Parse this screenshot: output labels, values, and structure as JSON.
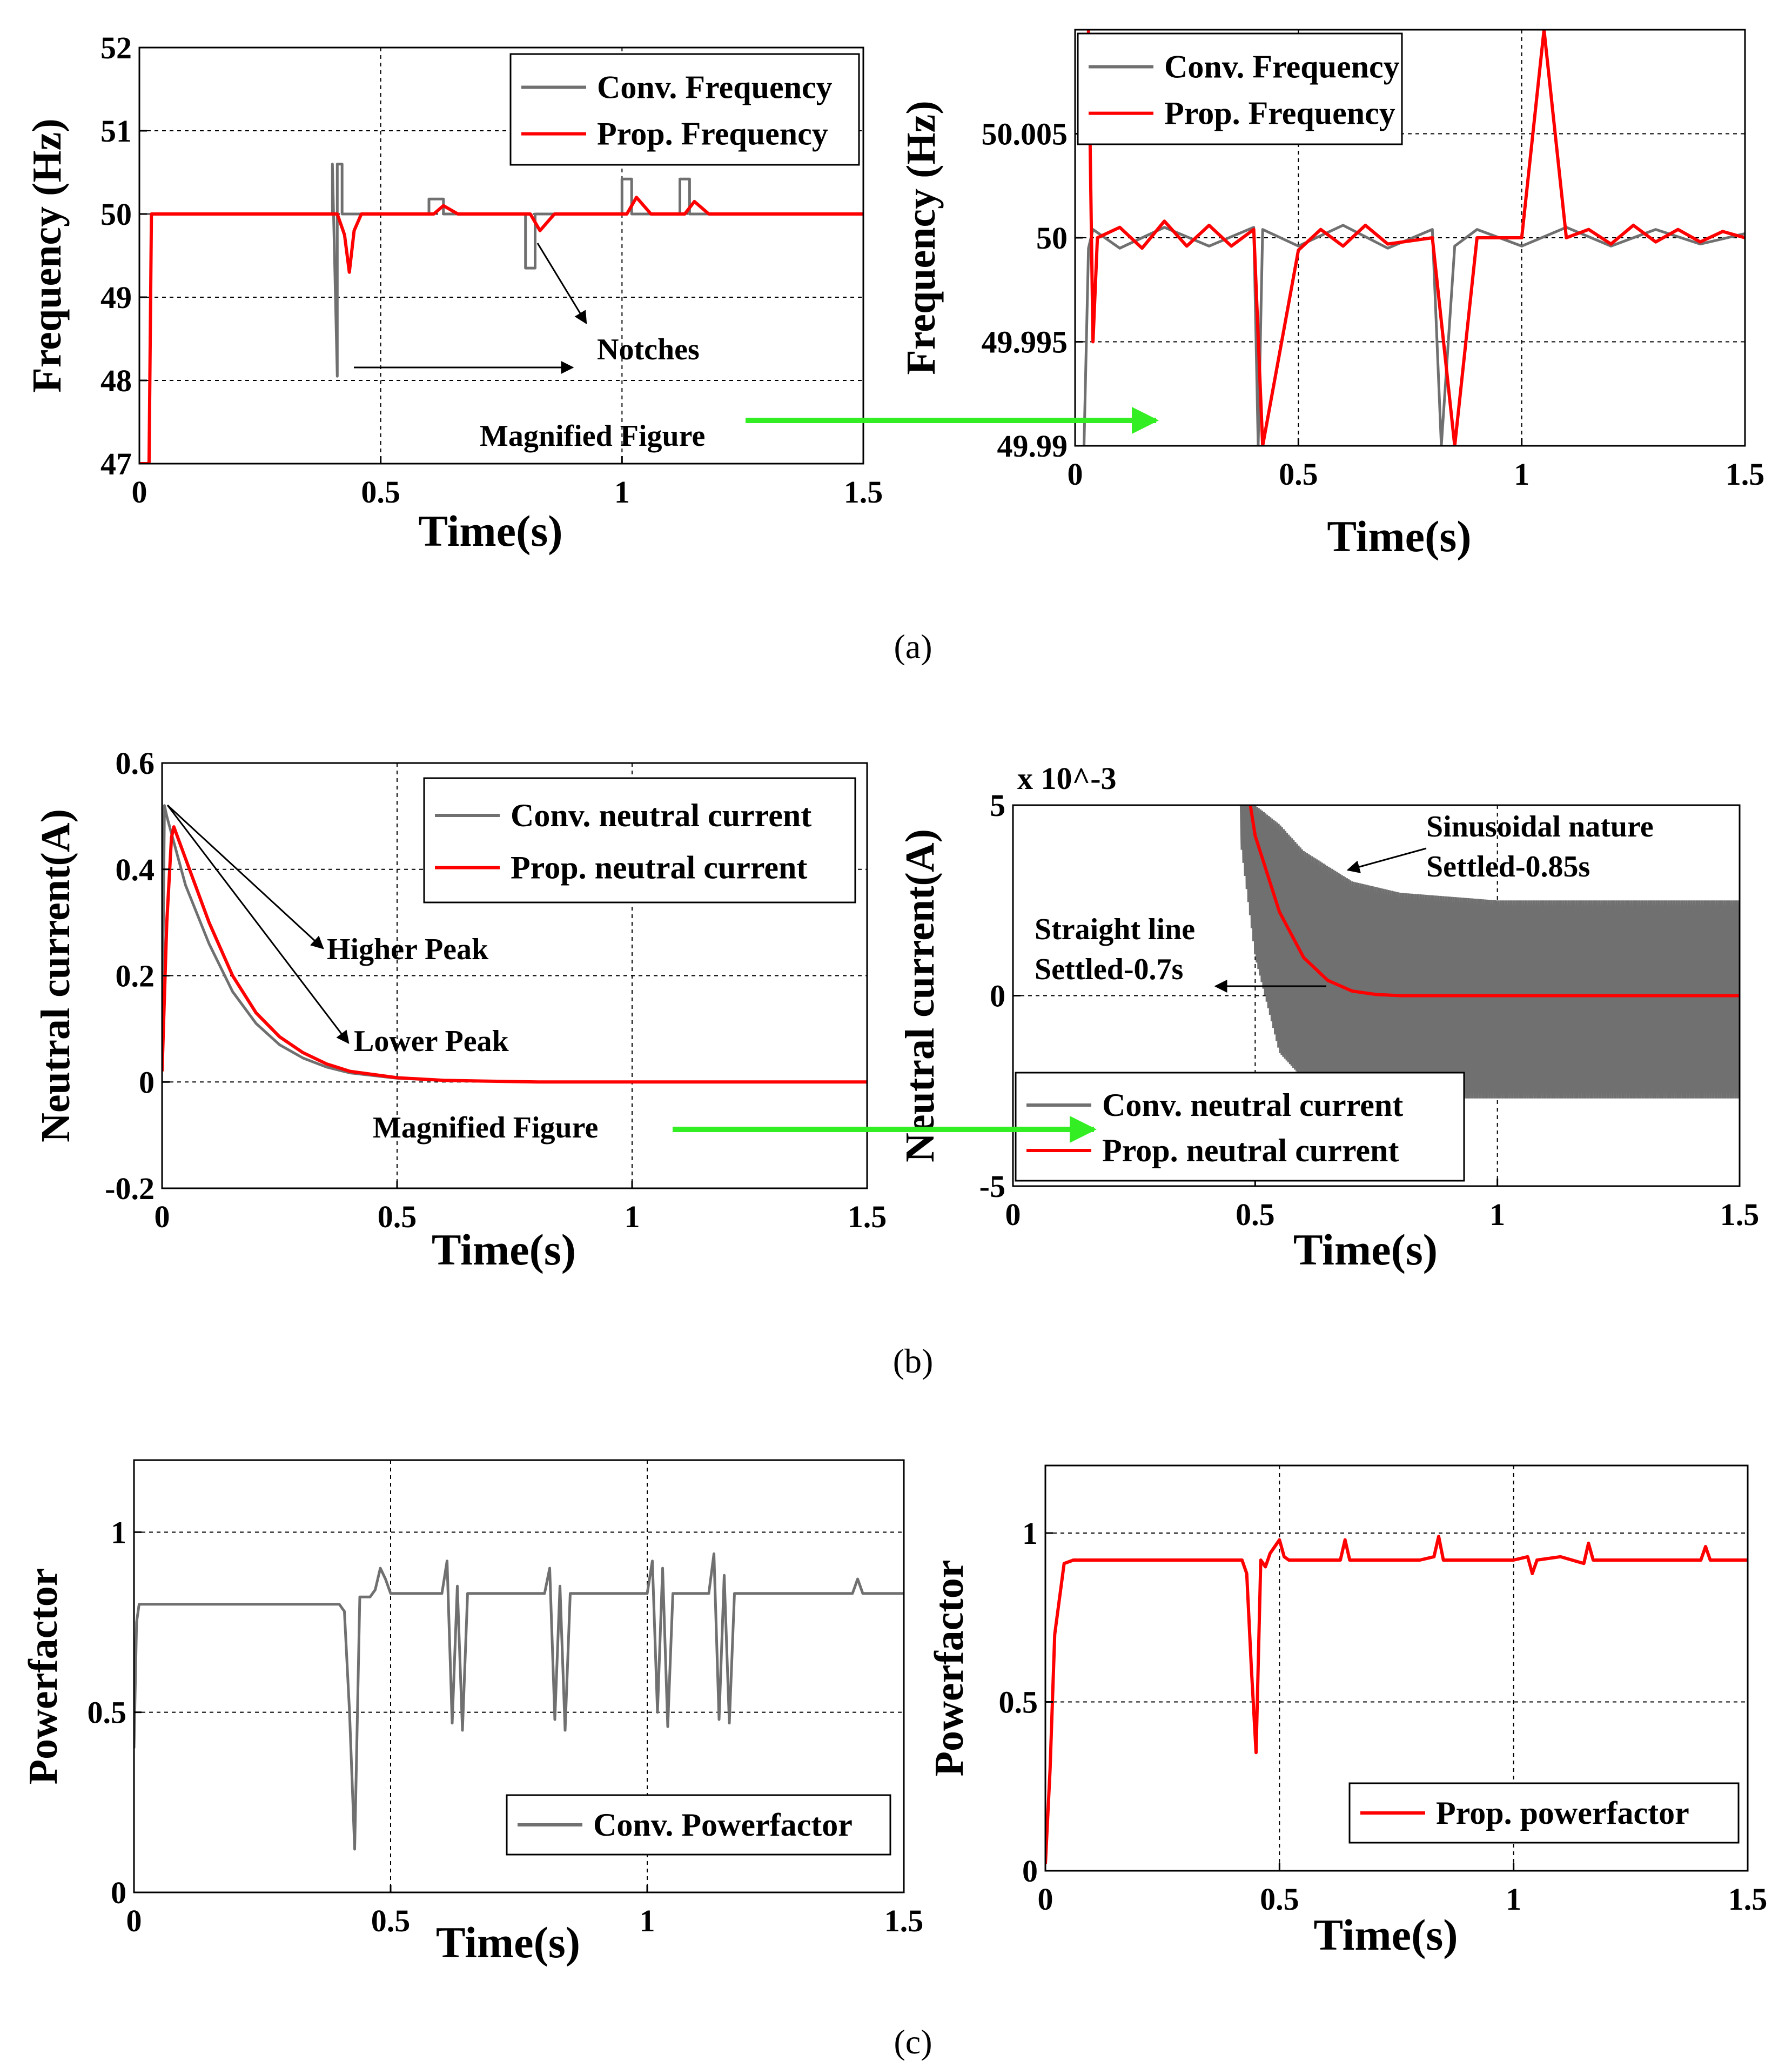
{
  "colors": {
    "conv": "#707070",
    "prop": "#ff0000",
    "magnify_arrow": "#33ee22",
    "grid": "#000000"
  },
  "captions": [
    "(a)",
    "(b)",
    "(c)"
  ],
  "chart_data": [
    {
      "id": "a-left",
      "type": "line",
      "xlabel": "Time(s)",
      "ylabel": "Frequency (Hz)",
      "xlim": [
        0,
        1.5
      ],
      "ylim": [
        47,
        52
      ],
      "xticks": [
        0,
        0.5,
        1,
        1.5
      ],
      "xtick_labels": [
        "0",
        "0.5",
        "1",
        "1.5"
      ],
      "yticks": [
        47,
        48,
        49,
        50,
        51,
        52
      ],
      "ytick_labels": [
        "47",
        "48",
        "49",
        "50",
        "51",
        "52"
      ],
      "grid": true,
      "legend_position": "top-right",
      "series": [
        {
          "name": "Conv. Frequency",
          "color": "#707070",
          "x": [
            0,
            0.02,
            0.025,
            0.04,
            0.4,
            0.4,
            0.41,
            0.41,
            0.42,
            0.42,
            0.43,
            0.6,
            0.6,
            0.63,
            0.63,
            0.8,
            0.8,
            0.82,
            0.82,
            1.0,
            1.0,
            1.02,
            1.02,
            1.12,
            1.12,
            1.14,
            1.14,
            1.5
          ],
          "y": [
            47,
            47,
            50,
            50,
            50,
            50.6,
            48.05,
            50.6,
            50.6,
            50,
            50,
            50,
            50.18,
            50.18,
            50,
            50,
            49.35,
            49.35,
            50,
            50,
            50.42,
            50.42,
            50,
            50,
            50.42,
            50.42,
            50,
            50
          ]
        },
        {
          "name": "Prop. Frequency",
          "color": "#ff0000",
          "x": [
            0,
            0.02,
            0.025,
            0.04,
            0.41,
            0.425,
            0.435,
            0.445,
            0.46,
            0.61,
            0.63,
            0.66,
            0.81,
            0.83,
            0.86,
            1.01,
            1.03,
            1.06,
            1.13,
            1.15,
            1.18,
            1.5
          ],
          "y": [
            47,
            47,
            50,
            50,
            50,
            49.75,
            49.3,
            49.8,
            50,
            50,
            50.1,
            50,
            50,
            49.8,
            50,
            50,
            50.2,
            50,
            50,
            50.15,
            50,
            50
          ]
        }
      ],
      "annotations": [
        "Notches",
        "Magnified Figure"
      ]
    },
    {
      "id": "a-right",
      "type": "line",
      "xlabel": "Time(s)",
      "ylabel": "Frequency (Hz)",
      "xlim": [
        0,
        1.5
      ],
      "ylim": [
        49.99,
        50.01
      ],
      "xticks": [
        0,
        0.5,
        1,
        1.5
      ],
      "xtick_labels": [
        "0",
        "0.5",
        "1",
        "1.5"
      ],
      "yticks": [
        49.99,
        49.995,
        50,
        50.005
      ],
      "ytick_labels": [
        "49.99",
        "49.995",
        "50",
        "50.005"
      ],
      "grid": true,
      "legend_position": "top-left",
      "series": [
        {
          "name": "Conv. Frequency",
          "color": "#707070",
          "x": [
            0.02,
            0.03,
            0.04,
            0.1,
            0.2,
            0.3,
            0.4,
            0.41,
            0.42,
            0.5,
            0.6,
            0.7,
            0.8,
            0.82,
            0.85,
            0.9,
            1.0,
            1.1,
            1.2,
            1.3,
            1.4,
            1.5
          ],
          "y": [
            49.99,
            49.9995,
            50.0004,
            49.9995,
            50.0005,
            49.9996,
            50.0005,
            49.99,
            50.0004,
            49.9996,
            50.0006,
            49.9995,
            50.0004,
            49.99,
            49.9996,
            50.0004,
            49.9996,
            50.0005,
            49.9996,
            50.0004,
            49.9997,
            50.0002
          ]
        },
        {
          "name": "Prop. Frequency",
          "color": "#ff0000",
          "x": [
            0.03,
            0.04,
            0.05,
            0.1,
            0.15,
            0.2,
            0.25,
            0.3,
            0.35,
            0.4,
            0.42,
            0.5,
            0.55,
            0.6,
            0.65,
            0.7,
            0.8,
            0.85,
            0.9,
            1.0,
            1.05,
            1.1,
            1.15,
            1.2,
            1.25,
            1.3,
            1.35,
            1.4,
            1.45,
            1.5
          ],
          "y": [
            50.01,
            49.995,
            50.0,
            50.0005,
            49.9995,
            50.0008,
            49.9996,
            50.0006,
            49.9996,
            50.0004,
            49.99,
            49.9994,
            50.0004,
            49.9996,
            50.0006,
            49.9997,
            50.0,
            49.99,
            50.0,
            50.0,
            50.01,
            50.0,
            50.0004,
            49.9997,
            50.0006,
            49.9998,
            50.0004,
            49.9998,
            50.0003,
            50.0
          ]
        }
      ]
    },
    {
      "id": "b-left",
      "type": "line",
      "xlabel": "Time(s)",
      "ylabel": "Neutral current(A)",
      "xlim": [
        0,
        1.5
      ],
      "ylim": [
        -0.2,
        0.6
      ],
      "xticks": [
        0,
        0.5,
        1,
        1.5
      ],
      "xtick_labels": [
        "0",
        "0.5",
        "1",
        "1.5"
      ],
      "yticks": [
        -0.2,
        0,
        0.2,
        0.4,
        0.6
      ],
      "ytick_labels": [
        "-0.2",
        "0",
        "0.2",
        "0.4",
        "0.6"
      ],
      "grid": true,
      "legend_position": "top-right",
      "series": [
        {
          "name": "Conv. neutral current",
          "color": "#707070",
          "x": [
            0,
            0.005,
            0.01,
            0.05,
            0.1,
            0.15,
            0.2,
            0.25,
            0.3,
            0.35,
            0.4,
            0.5,
            0.6,
            0.8,
            1.0,
            1.5
          ],
          "y": [
            0.04,
            0.52,
            0.5,
            0.37,
            0.26,
            0.17,
            0.11,
            0.07,
            0.045,
            0.028,
            0.017,
            0.007,
            0.003,
            0.0,
            0.0,
            0.0
          ]
        },
        {
          "name": "Prop. neutral current",
          "color": "#ff0000",
          "x": [
            0,
            0.01,
            0.02,
            0.025,
            0.05,
            0.1,
            0.15,
            0.2,
            0.25,
            0.3,
            0.35,
            0.4,
            0.5,
            0.6,
            0.8,
            1.0,
            1.5
          ],
          "y": [
            0.02,
            0.3,
            0.46,
            0.48,
            0.42,
            0.3,
            0.2,
            0.13,
            0.085,
            0.055,
            0.034,
            0.02,
            0.008,
            0.003,
            0.0,
            0.0,
            0.0
          ]
        }
      ],
      "annotations": [
        "Higher Peak",
        "Lower Peak",
        "Magnified Figure"
      ]
    },
    {
      "id": "b-right",
      "type": "line",
      "xlabel": "Time(s)",
      "ylabel": "Neutral current(A)",
      "xlim": [
        0,
        1.5
      ],
      "ylim": [
        -5,
        5
      ],
      "y_scale_label": "x 10^-3",
      "xticks": [
        0,
        0.5,
        1,
        1.5
      ],
      "xtick_labels": [
        "0",
        "0.5",
        "1",
        "1.5"
      ],
      "yticks": [
        -5,
        0,
        5
      ],
      "ytick_labels": [
        "-5",
        "0",
        "5"
      ],
      "grid": true,
      "legend_position": "bottom-left",
      "series": [
        {
          "name": "Conv. neutral current",
          "color": "#707070",
          "x": [
            0.47,
            0.5,
            0.55,
            0.6,
            0.7,
            0.8,
            0.9,
            1.0,
            1.2,
            1.5
          ],
          "y_envelope_high": [
            5,
            5,
            4.5,
            3.8,
            3.0,
            2.7,
            2.6,
            2.5,
            2.5,
            2.5
          ],
          "y_envelope_low": [
            4,
            1,
            -1.5,
            -2.2,
            -2.6,
            -2.7,
            -2.7,
            -2.7,
            -2.7,
            -2.7
          ]
        },
        {
          "name": "Prop. neutral current",
          "color": "#ff0000",
          "x": [
            0.49,
            0.5,
            0.55,
            0.6,
            0.65,
            0.7,
            0.75,
            0.8,
            1.0,
            1.5
          ],
          "y": [
            5,
            4.2,
            2.2,
            1.0,
            0.4,
            0.12,
            0.03,
            0.0,
            0.0,
            0.0
          ]
        }
      ],
      "annotations": [
        "Sinusoidal nature",
        "Settled-0.85s",
        "Straight line",
        "Settled-0.7s"
      ]
    },
    {
      "id": "c-left",
      "type": "line",
      "xlabel": "Time(s)",
      "ylabel": "Powerfactor",
      "xlim": [
        0,
        1.5
      ],
      "ylim": [
        0,
        1.2
      ],
      "xticks": [
        0,
        0.5,
        1,
        1.5
      ],
      "xtick_labels": [
        "0",
        "0.5",
        "1",
        "1.5"
      ],
      "yticks": [
        0,
        0.5,
        1
      ],
      "ytick_labels": [
        "0",
        "0.5",
        "1"
      ],
      "grid": true,
      "legend_position": "bottom-right",
      "series": [
        {
          "name": "Conv. Powerfactor",
          "color": "#707070",
          "x": [
            0,
            0.005,
            0.01,
            0.02,
            0.4,
            0.41,
            0.42,
            0.43,
            0.44,
            0.46,
            0.47,
            0.48,
            0.49,
            0.5,
            0.6,
            0.61,
            0.62,
            0.63,
            0.64,
            0.65,
            0.8,
            0.81,
            0.82,
            0.83,
            0.84,
            0.85,
            1.0,
            1.01,
            1.02,
            1.03,
            1.04,
            1.05,
            1.12,
            1.13,
            1.14,
            1.15,
            1.16,
            1.17,
            1.4,
            1.41,
            1.42,
            1.5
          ],
          "y": [
            0.4,
            0.75,
            0.8,
            0.8,
            0.8,
            0.78,
            0.5,
            0.12,
            0.82,
            0.82,
            0.84,
            0.9,
            0.87,
            0.83,
            0.83,
            0.92,
            0.47,
            0.85,
            0.45,
            0.83,
            0.83,
            0.9,
            0.48,
            0.85,
            0.45,
            0.83,
            0.83,
            0.92,
            0.5,
            0.9,
            0.46,
            0.83,
            0.83,
            0.94,
            0.48,
            0.88,
            0.47,
            0.83,
            0.83,
            0.87,
            0.83,
            0.83
          ]
        }
      ]
    },
    {
      "id": "c-right",
      "type": "line",
      "xlabel": "Time(s)",
      "ylabel": "Powerfactor",
      "xlim": [
        0,
        1.5
      ],
      "ylim": [
        0,
        1.2
      ],
      "xticks": [
        0,
        0.5,
        1,
        1.5
      ],
      "xtick_labels": [
        "0",
        "0.5",
        "1",
        "1.5"
      ],
      "yticks": [
        0,
        0.5,
        1
      ],
      "ytick_labels": [
        "0",
        "0.5",
        "1"
      ],
      "grid": true,
      "legend_position": "bottom-right",
      "series": [
        {
          "name": "Prop. powerfactor",
          "color": "#ff0000",
          "x": [
            0,
            0.01,
            0.02,
            0.04,
            0.06,
            0.42,
            0.43,
            0.44,
            0.45,
            0.46,
            0.47,
            0.48,
            0.5,
            0.51,
            0.52,
            0.6,
            0.63,
            0.64,
            0.65,
            0.8,
            0.83,
            0.84,
            0.85,
            1.0,
            1.03,
            1.04,
            1.05,
            1.1,
            1.15,
            1.16,
            1.17,
            1.35,
            1.4,
            1.41,
            1.42,
            1.5
          ],
          "y": [
            0.02,
            0.3,
            0.7,
            0.91,
            0.92,
            0.92,
            0.88,
            0.6,
            0.35,
            0.92,
            0.9,
            0.94,
            0.98,
            0.93,
            0.92,
            0.92,
            0.92,
            0.98,
            0.92,
            0.92,
            0.93,
            0.99,
            0.92,
            0.92,
            0.93,
            0.88,
            0.92,
            0.93,
            0.91,
            0.97,
            0.92,
            0.92,
            0.92,
            0.96,
            0.92,
            0.92
          ]
        }
      ]
    }
  ]
}
